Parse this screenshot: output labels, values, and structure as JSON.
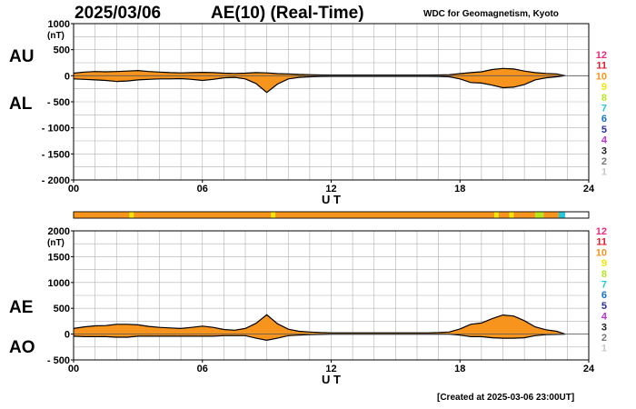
{
  "header": {
    "date": "2025/03/06",
    "title": "AE(10) (Real-Time)",
    "organization": "WDC for Geomagnetism, Kyoto"
  },
  "footer": {
    "created": "[Created at 2025-03-06 23:00UT]"
  },
  "legend": {
    "levels": [
      {
        "label": "12",
        "color": "#ee2a7b"
      },
      {
        "label": "11",
        "color": "#e8192c"
      },
      {
        "label": "10",
        "color": "#f7941d"
      },
      {
        "label": "9",
        "color": "#f3e600"
      },
      {
        "label": "8",
        "color": "#b5e61d"
      },
      {
        "label": "7",
        "color": "#27c6d8"
      },
      {
        "label": "6",
        "color": "#1273c9"
      },
      {
        "label": "5",
        "color": "#2b2f9e"
      },
      {
        "label": "4",
        "color": "#c12de0"
      },
      {
        "label": "3",
        "color": "#222222"
      },
      {
        "label": "2",
        "color": "#777777"
      },
      {
        "label": "1",
        "color": "#c8c8c8"
      }
    ]
  },
  "chart_data": [
    {
      "type": "area",
      "panel": "top",
      "labels_upper": "AU",
      "labels_lower": "AL",
      "ylabel": "(nT)",
      "xlabel": "U T",
      "ylim": [
        -2000,
        1000
      ],
      "yticks": [
        1000,
        500,
        0,
        -500,
        -1000,
        -1500,
        -2000
      ],
      "ytick_labels": [
        "1000",
        "500",
        "0",
        "- 500",
        "- 1000",
        "- 1500",
        "- 2000"
      ],
      "xlim": [
        0,
        24
      ],
      "xticks": [
        0,
        6,
        12,
        18,
        24
      ],
      "xtick_labels": [
        "00",
        "06",
        "12",
        "18",
        "24"
      ],
      "grid": true,
      "fill_color": "#f7941d",
      "highlight_color": "#f3e600",
      "series": [
        {
          "name": "AU",
          "x": [
            0,
            0.5,
            1,
            1.5,
            2,
            2.5,
            3,
            3.5,
            4,
            4.5,
            5,
            5.5,
            6,
            6.5,
            7,
            7.5,
            8,
            8.5,
            9,
            9.5,
            10,
            10.5,
            11,
            11.5,
            12,
            12.5,
            13,
            13.5,
            14,
            14.5,
            15,
            15.5,
            16,
            16.5,
            17,
            17.5,
            18,
            18.5,
            19,
            19.5,
            20,
            20.5,
            21,
            21.5,
            22,
            22.5,
            22.9
          ],
          "y": [
            50,
            70,
            80,
            75,
            80,
            90,
            100,
            80,
            70,
            60,
            55,
            60,
            65,
            60,
            50,
            45,
            50,
            60,
            55,
            40,
            35,
            25,
            20,
            15,
            12,
            12,
            12,
            12,
            12,
            12,
            12,
            12,
            12,
            12,
            15,
            20,
            40,
            60,
            75,
            120,
            140,
            130,
            90,
            60,
            45,
            35,
            0
          ]
        },
        {
          "name": "AL",
          "x": [
            0,
            0.5,
            1,
            1.5,
            2,
            2.5,
            3,
            3.5,
            4,
            4.5,
            5,
            5.5,
            6,
            6.5,
            7,
            7.5,
            8,
            8.5,
            9,
            9.5,
            10,
            10.5,
            11,
            11.5,
            12,
            12.5,
            13,
            13.5,
            14,
            14.5,
            15,
            15.5,
            16,
            16.5,
            17,
            17.5,
            18,
            18.5,
            19,
            19.5,
            20,
            20.5,
            21,
            21.5,
            22,
            22.5,
            22.9
          ],
          "y": [
            -60,
            -70,
            -80,
            -90,
            -110,
            -100,
            -80,
            -70,
            -60,
            -60,
            -55,
            -70,
            -90,
            -70,
            -40,
            -30,
            -60,
            -150,
            -320,
            -160,
            -60,
            -30,
            -20,
            -15,
            -12,
            -12,
            -12,
            -12,
            -12,
            -12,
            -12,
            -12,
            -12,
            -12,
            -15,
            -20,
            -60,
            -130,
            -140,
            -180,
            -230,
            -220,
            -170,
            -80,
            -40,
            -20,
            0
          ]
        }
      ],
      "color_bar_segments": [
        {
          "x": [
            0,
            2.6
          ],
          "color": "#f7941d"
        },
        {
          "x": [
            2.6,
            2.8
          ],
          "color": "#f3e600"
        },
        {
          "x": [
            2.8,
            9.2
          ],
          "color": "#f7941d"
        },
        {
          "x": [
            9.2,
            9.4
          ],
          "color": "#f3e600"
        },
        {
          "x": [
            9.4,
            19.6
          ],
          "color": "#f7941d"
        },
        {
          "x": [
            19.6,
            19.8
          ],
          "color": "#f3e600"
        },
        {
          "x": [
            19.8,
            20.3
          ],
          "color": "#f7941d"
        },
        {
          "x": [
            20.3,
            20.5
          ],
          "color": "#f3e600"
        },
        {
          "x": [
            20.5,
            21.5
          ],
          "color": "#f7941d"
        },
        {
          "x": [
            21.5,
            21.9
          ],
          "color": "#b5e61d"
        },
        {
          "x": [
            21.9,
            22.6
          ],
          "color": "#f7941d"
        },
        {
          "x": [
            22.6,
            22.9
          ],
          "color": "#27c6d8"
        }
      ]
    },
    {
      "type": "area",
      "panel": "bottom",
      "labels_upper": "AE",
      "labels_lower": "AO",
      "ylabel": "(nT)",
      "xlabel": "U T",
      "ylim": [
        -500,
        2000
      ],
      "yticks": [
        2000,
        1500,
        1000,
        500,
        0,
        -500
      ],
      "ytick_labels": [
        "2000",
        "1500",
        "1000",
        "500",
        "0",
        "- 500"
      ],
      "xlim": [
        0,
        24
      ],
      "xticks": [
        0,
        6,
        12,
        18,
        24
      ],
      "xtick_labels": [
        "00",
        "06",
        "12",
        "18",
        "24"
      ],
      "grid": true,
      "fill_color": "#f7941d",
      "series": [
        {
          "name": "AE",
          "x": [
            0,
            0.5,
            1,
            1.5,
            2,
            2.5,
            3,
            3.5,
            4,
            4.5,
            5,
            5.5,
            6,
            6.5,
            7,
            7.5,
            8,
            8.5,
            9,
            9.5,
            10,
            10.5,
            11,
            11.5,
            12,
            12.5,
            13,
            13.5,
            14,
            14.5,
            15,
            15.5,
            16,
            16.5,
            17,
            17.5,
            18,
            18.5,
            19,
            19.5,
            20,
            20.5,
            21,
            21.5,
            22,
            22.5,
            22.9
          ],
          "y": [
            110,
            140,
            160,
            165,
            190,
            190,
            180,
            150,
            130,
            120,
            110,
            130,
            155,
            130,
            90,
            75,
            110,
            210,
            375,
            200,
            95,
            55,
            40,
            30,
            24,
            24,
            24,
            24,
            24,
            24,
            24,
            24,
            24,
            24,
            30,
            40,
            100,
            190,
            215,
            300,
            370,
            350,
            260,
            140,
            85,
            55,
            0
          ]
        },
        {
          "name": "AO",
          "x": [
            0,
            0.5,
            1,
            1.5,
            2,
            2.5,
            3,
            3.5,
            4,
            4.5,
            5,
            5.5,
            6,
            6.5,
            7,
            7.5,
            8,
            8.5,
            9,
            9.5,
            10,
            10.5,
            11,
            11.5,
            12,
            12.5,
            13,
            13.5,
            14,
            14.5,
            15,
            15.5,
            16,
            16.5,
            17,
            17.5,
            18,
            18.5,
            19,
            19.5,
            20,
            20.5,
            21,
            21.5,
            22,
            22.5,
            22.9
          ],
          "y": [
            -40,
            -50,
            -50,
            -50,
            -60,
            -60,
            -40,
            -40,
            -40,
            -40,
            -40,
            -40,
            -40,
            -40,
            -30,
            -30,
            -30,
            -80,
            -120,
            -80,
            -30,
            -20,
            -10,
            -5,
            0,
            0,
            0,
            0,
            0,
            0,
            0,
            0,
            0,
            0,
            0,
            0,
            -20,
            -50,
            -50,
            -70,
            -80,
            -80,
            -70,
            -30,
            -10,
            -5,
            0
          ]
        }
      ]
    }
  ]
}
